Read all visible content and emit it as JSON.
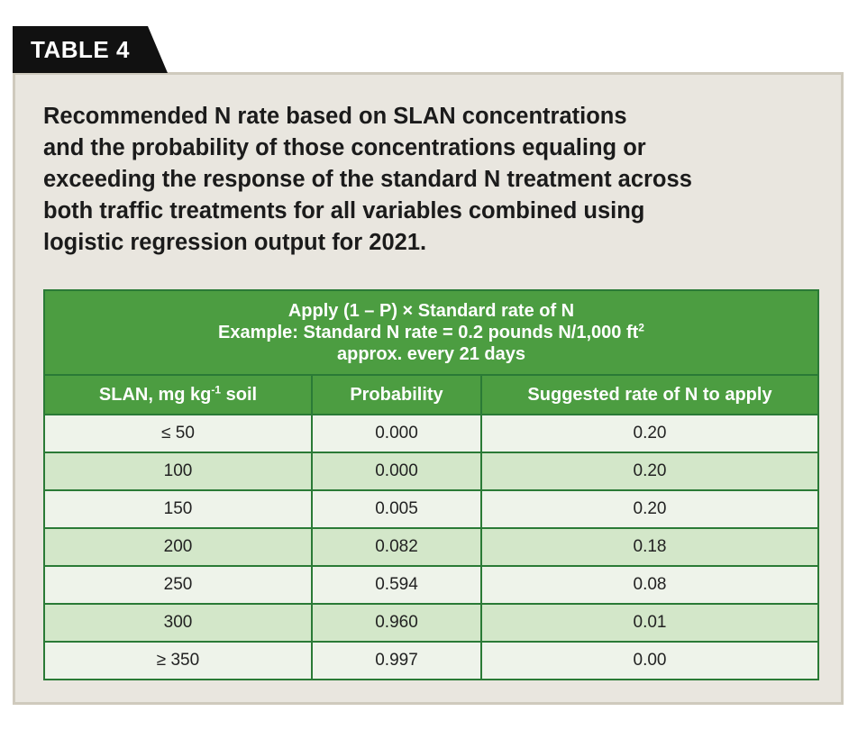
{
  "tag_label": "TABLE 4",
  "caption": "Recommended N rate based on SLAN concentrations\nand the probability of those concentrations equaling or\nexceeding the response of the standard N treatment across\nboth traffic treatments for all variables combined using\nlogistic regression output for 2021.",
  "banner": {
    "line1": "Apply (1 – P) × Standard rate of N",
    "line2_prefix": "Example: Standard N rate = 0.2 pounds N/1,000 ft",
    "line2_sup": "2",
    "line3": "approx. every 21 days"
  },
  "columns": {
    "slan_prefix": "SLAN, mg kg",
    "slan_sup": "-1",
    "slan_suffix": " soil",
    "probability": "Probability",
    "rate": "Suggested rate of N to apply"
  },
  "rows": [
    {
      "slan": "≤ 50",
      "probability": "0.000",
      "rate": "0.20"
    },
    {
      "slan": "100",
      "probability": "0.000",
      "rate": "0.20"
    },
    {
      "slan": "150",
      "probability": "0.005",
      "rate": "0.20"
    },
    {
      "slan": "200",
      "probability": "0.082",
      "rate": "0.18"
    },
    {
      "slan": "250",
      "probability": "0.594",
      "rate": "0.08"
    },
    {
      "slan": "300",
      "probability": "0.960",
      "rate": "0.01"
    },
    {
      "slan": "≥ 350",
      "probability": "0.997",
      "rate": "0.00"
    }
  ],
  "colors": {
    "header_green": "#4c9d41",
    "border_green": "#2a7a36",
    "row_light": "#eef3ea",
    "row_green": "#d3e7c9",
    "panel_bg": "#e9e6df"
  }
}
